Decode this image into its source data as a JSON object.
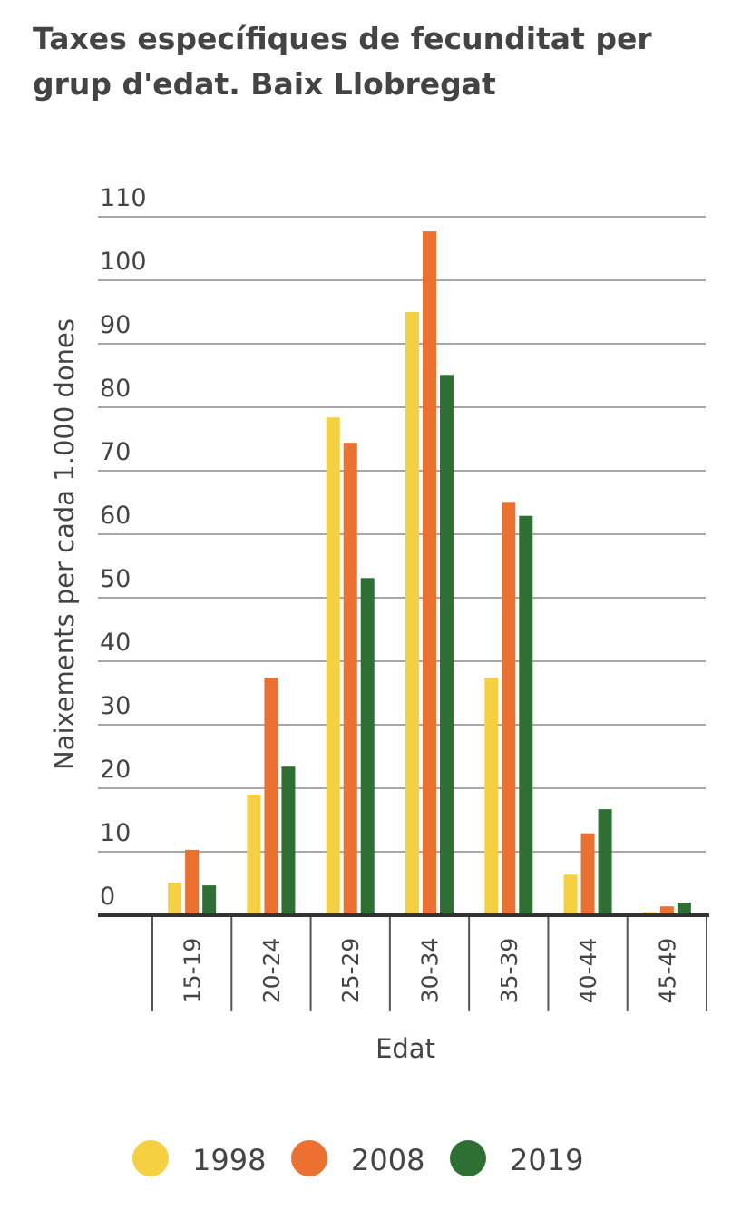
{
  "chart_data": {
    "type": "bar",
    "title": "Taxes específiques de fecunditat per grup d'edat. Baix Llobregat",
    "xlabel": "Edat",
    "ylabel": "Naixements per cada 1.000 dones",
    "ylim": [
      0,
      110
    ],
    "yticks": [
      "0",
      "10",
      "20",
      "30",
      "40",
      "50",
      "60",
      "70",
      "80",
      "90",
      "100",
      "110"
    ],
    "grid": true,
    "legend_position": "bottom",
    "categories": [
      "15-19",
      "20-24",
      "25-29",
      "30-34",
      "35-39",
      "40-44",
      "45-49"
    ],
    "series": [
      {
        "name": "1998",
        "color": "#f5d142",
        "values": [
          5.1,
          19.0,
          78.4,
          95.0,
          37.4,
          6.4,
          0.5
        ]
      },
      {
        "name": "2008",
        "color": "#ec7030",
        "values": [
          10.3,
          37.4,
          74.4,
          107.7,
          65.1,
          12.9,
          1.4
        ]
      },
      {
        "name": "2019",
        "color": "#2e7034",
        "values": [
          4.7,
          23.4,
          53.1,
          85.1,
          62.9,
          16.7,
          2.0
        ]
      }
    ]
  }
}
